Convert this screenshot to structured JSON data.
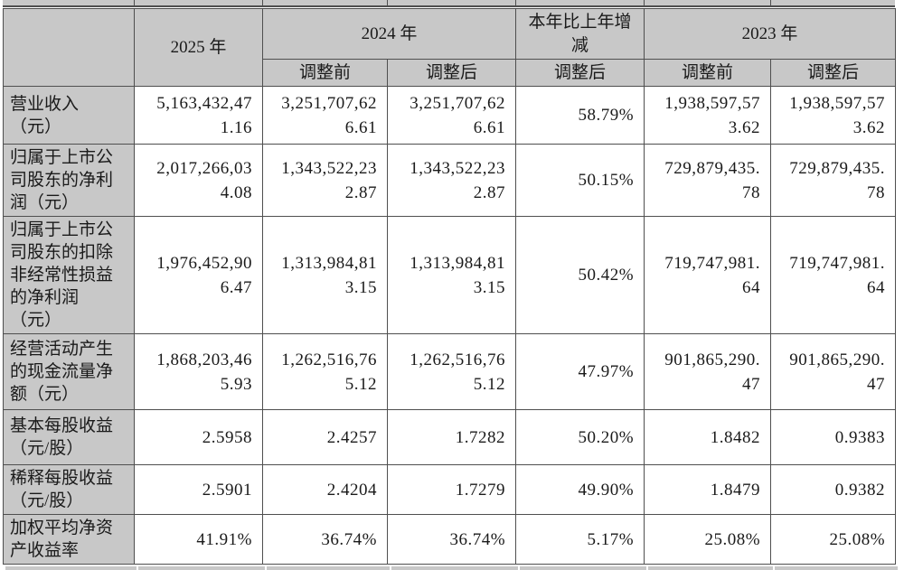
{
  "table": {
    "corner": "",
    "col_2025": "2025 年",
    "col_2024": "2024 年",
    "col_change": "本年比上年增\n减",
    "col_2023": "2023 年",
    "subheaders": [
      "调整前",
      "调整后",
      "调整后",
      "调整前",
      "调整后"
    ],
    "rows": [
      {
        "label": "营业收入\n（元）",
        "values": [
          "5,163,432,47\n1.16",
          "3,251,707,62\n6.61",
          "3,251,707,62\n6.61",
          "58.79%",
          "1,938,597,57\n3.62",
          "1,938,597,57\n3.62"
        ]
      },
      {
        "label": "归属于上市公\n司股东的净利\n润（元）",
        "values": [
          "2,017,266,03\n4.08",
          "1,343,522,23\n2.87",
          "1,343,522,23\n2.87",
          "50.15%",
          "729,879,435.\n78",
          "729,879,435.\n78"
        ]
      },
      {
        "label": "归属于上市公\n司股东的扣除\n非经常性损益\n的净利润\n（元）",
        "values": [
          "1,976,452,90\n6.47",
          "1,313,984,81\n3.15",
          "1,313,984,81\n3.15",
          "50.42%",
          "719,747,981.\n64",
          "719,747,981.\n64"
        ]
      },
      {
        "label": "经营活动产生\n的现金流量净\n额（元）",
        "values": [
          "1,868,203,46\n5.93",
          "1,262,516,76\n5.12",
          "1,262,516,76\n5.12",
          "47.97%",
          "901,865,290.\n47",
          "901,865,290.\n47"
        ]
      },
      {
        "label": "基本每股收益\n（元/股）",
        "values": [
          "2.5958",
          "2.4257",
          "1.7282",
          "50.20%",
          "1.8482",
          "0.9383"
        ]
      },
      {
        "label": "稀释每股收益\n（元/股）",
        "values": [
          "2.5901",
          "2.4204",
          "1.7279",
          "49.90%",
          "1.8479",
          "0.9382"
        ]
      },
      {
        "label": "加权平均净资\n产收益率",
        "values": [
          "41.91%",
          "36.74%",
          "36.74%",
          "5.17%",
          "25.08%",
          "25.08%"
        ]
      }
    ],
    "colors": {
      "header_bg": "#c8c8c8",
      "cell_bg": "#ffffff",
      "border": "#4f4f4f",
      "text": "#1a1a1a"
    }
  }
}
